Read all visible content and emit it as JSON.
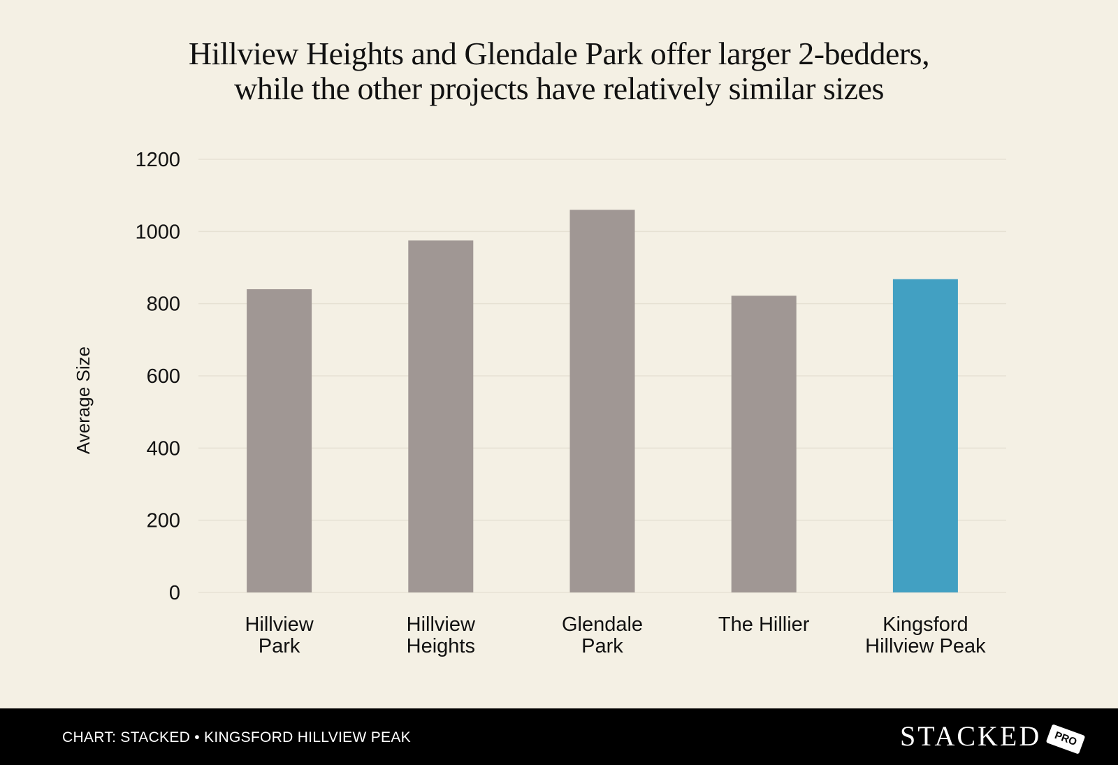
{
  "title": {
    "line1": "Hillview Heights and Glendale Park offer larger 2-bedders,",
    "line2": "while the other projects have relatively similar sizes"
  },
  "chart_data": {
    "type": "bar",
    "categories": [
      [
        "Hillview",
        "Park"
      ],
      [
        "Hillview",
        "Heights"
      ],
      [
        "Glendale",
        "Park"
      ],
      [
        "The Hillier"
      ],
      [
        "Kingsford",
        "Hillview Peak"
      ]
    ],
    "values": [
      840,
      975,
      1060,
      822,
      868
    ],
    "bar_colors": [
      "#a09794",
      "#a09794",
      "#a09794",
      "#a09794",
      "#42a0c2"
    ],
    "ylabel": "Average Size",
    "xlabel": "",
    "ylim": [
      0,
      1200
    ],
    "yticks": [
      0,
      200,
      400,
      600,
      800,
      1000,
      1200
    ],
    "grid": true
  },
  "footer": {
    "note": "CHART: STACKED • KINGSFORD HILLVIEW PEAK",
    "logo_text": "STACKED",
    "logo_badge": "PRO"
  },
  "colors": {
    "background": "#f4f0e4",
    "footer_bg": "#000000",
    "grid": "#e6e1d3"
  }
}
